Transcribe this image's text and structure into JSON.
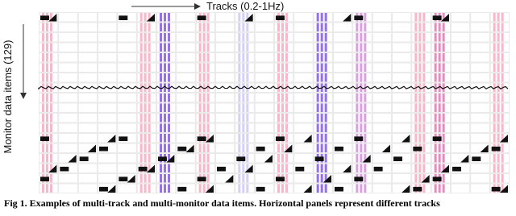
{
  "figure": {
    "x_label": "Tracks (0.2-1Hz)",
    "y_label": "Monitor data items (129)",
    "caption": "Fig 1. Examples of multi-track and multi-monitor data items. Horizontal panels represent different tracks"
  }
}
